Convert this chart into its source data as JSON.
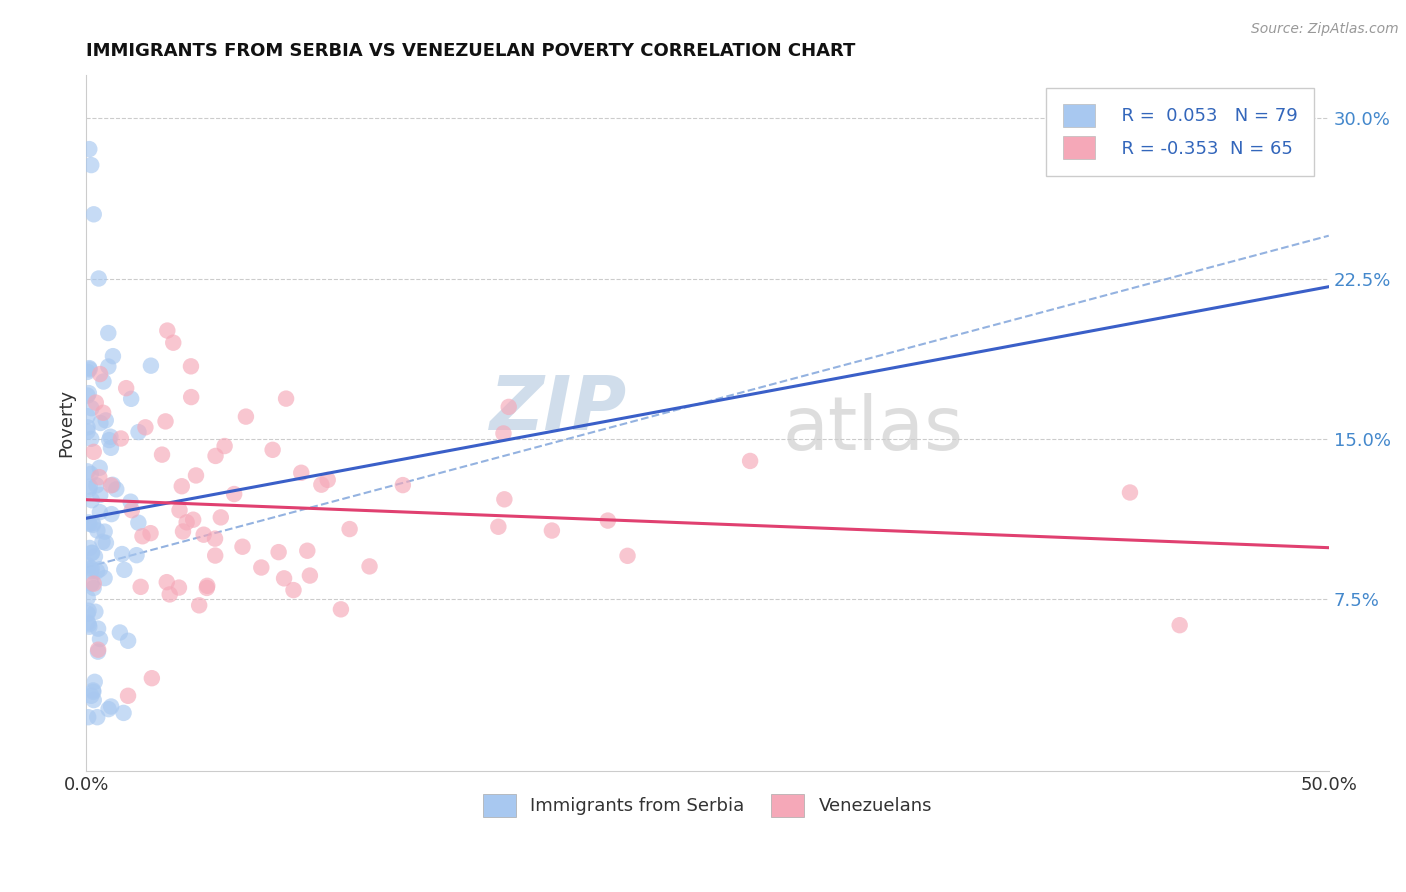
{
  "title": "IMMIGRANTS FROM SERBIA VS VENEZUELAN POVERTY CORRELATION CHART",
  "source": "Source: ZipAtlas.com",
  "ylabel": "Poverty",
  "serbia_R": "0.053",
  "serbia_N": "79",
  "venezuela_R": "-0.353",
  "venezuela_N": "65",
  "serbia_color": "#a8c8f0",
  "venezuela_color": "#f5a8b8",
  "serbia_line_color": "#3a5fc8",
  "venezuela_line_color": "#e04070",
  "dashed_line_color": "#88aadd",
  "background_color": "#ffffff",
  "watermark_zip": "ZIP",
  "watermark_atlas": "atlas",
  "grid_color": "#cccccc",
  "xlim": [
    0.0,
    0.5
  ],
  "ylim": [
    -0.005,
    0.32
  ],
  "y_ticks": [
    0.075,
    0.15,
    0.225,
    0.3
  ],
  "y_tick_labels": [
    "7.5%",
    "15.0%",
    "22.5%",
    "30.0%"
  ],
  "legend_labels": [
    "Immigrants from Serbia",
    "Venezuelans"
  ],
  "serbia_seed": 42,
  "venezuela_seed": 7
}
